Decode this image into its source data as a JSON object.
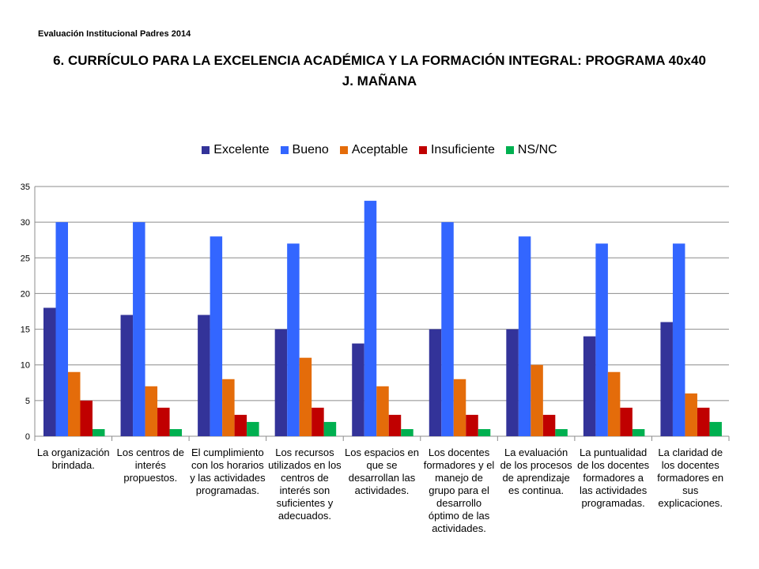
{
  "header": {
    "subtitle": "Evaluación  Institucional Padres 2014",
    "title_line1": "6. CURRÍCULO PARA LA EXCELENCIA ACADÉMICA Y LA FORMACIÓN INTEGRAL: PROGRAMA 40x40",
    "title_line2": "J. MAÑANA"
  },
  "chart_data": {
    "type": "bar",
    "categories": [
      "La organización brindada.",
      "Los centros de interés propuestos.",
      "El cumplimiento con los horarios y las actividades programadas.",
      "Los recursos utilizados en los centros de interés son suficientes y adecuados.",
      "Los espacios en que se desarrollan las actividades.",
      "Los docentes formadores y el manejo de grupo para el desarrollo óptimo de las actividades.",
      "La evaluación de los procesos de aprendizaje es continua.",
      "La puntualidad de los docentes formadores a las actividades programadas.",
      "La claridad de los docentes formadores en sus explicaciones."
    ],
    "series": [
      {
        "name": "Excelente",
        "color": "#333399",
        "values": [
          18,
          17,
          17,
          15,
          13,
          15,
          15,
          14,
          16
        ]
      },
      {
        "name": "Bueno",
        "color": "#3366FF",
        "values": [
          30,
          30,
          28,
          27,
          33,
          30,
          28,
          27,
          27
        ]
      },
      {
        "name": "Aceptable",
        "color": "#E46C0A",
        "values": [
          9,
          7,
          8,
          11,
          7,
          8,
          10,
          9,
          6
        ]
      },
      {
        "name": "Insuficiente",
        "color": "#C00000",
        "values": [
          5,
          4,
          3,
          4,
          3,
          3,
          3,
          4,
          4
        ]
      },
      {
        "name": "NS/NC",
        "color": "#00B050",
        "values": [
          1,
          1,
          2,
          2,
          1,
          1,
          1,
          1,
          2
        ]
      }
    ],
    "title": "",
    "xlabel": "",
    "ylabel": "",
    "ylim": [
      0,
      35
    ],
    "yticks": [
      0,
      5,
      10,
      15,
      20,
      25,
      30,
      35
    ],
    "grid": true,
    "legend_position": "top"
  }
}
